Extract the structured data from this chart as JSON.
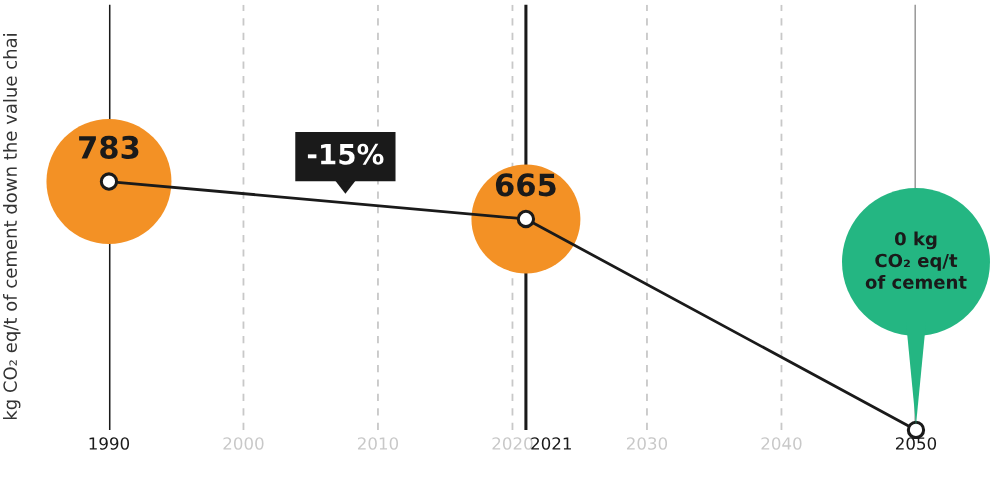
{
  "chart_data": {
    "type": "line",
    "ylabel": "kg CO₂ eq/t of cement down the value chai",
    "x": [
      1990,
      2021,
      2050
    ],
    "series": [
      {
        "type": "bubble",
        "color": "#f39125",
        "values": [
          783,
          665,
          null
        ],
        "sizes": [
          1,
          0.76,
          null
        ]
      },
      {
        "color": "#1a1a1a",
        "values": [
          783,
          665,
          0
        ],
        "marker": "circle",
        "line_style": "solid",
        "value_labels": [
          "783",
          "665",
          null
        ]
      }
    ],
    "xlim": [
      1990,
      2050
    ],
    "ylim": [
      0,
      1340
    ],
    "xticks": [
      1990,
      2000,
      2010,
      2020,
      2030,
      2040,
      2050
    ],
    "tick_labels": "x",
    "grid": "x",
    "ref_lines": [
      {
        "axis": "x",
        "value": 1990,
        "color": "#1a1a1a"
      },
      {
        "axis": "x",
        "value": 2021,
        "color": "#1a1a1a",
        "label": "2021"
      },
      {
        "axis": "x",
        "value": 2050,
        "color": "#999999"
      }
    ],
    "annotations": [
      "-15%",
      "0 kg\nCO₂ eq/t\nof cement"
    ]
  }
}
